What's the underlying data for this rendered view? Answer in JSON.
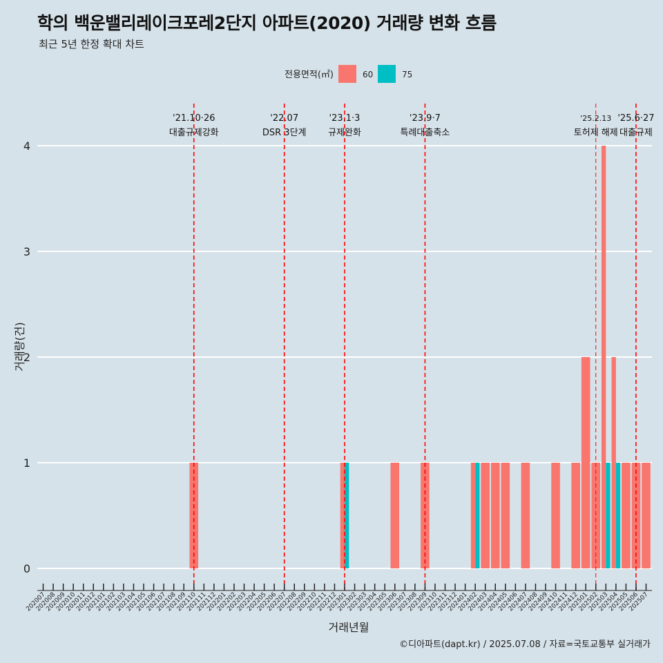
{
  "title": "학의 백운밸리레이크포레2단지 아파트(2020) 거래량 변화 흐름",
  "subtitle": "최근 5년 한정 확대 차트",
  "caption": "©디아파트(dapt.kr) / 2025.07.08 / 자료=국토교통부 실거래가",
  "chart_data": {
    "type": "bar",
    "xlabel": "거래년월",
    "ylabel": "거래량(건)",
    "ylim": [
      0,
      4
    ],
    "yticks": [
      0,
      1,
      2,
      3,
      4
    ],
    "legend": {
      "title": "전용면적(㎡)",
      "position": "top",
      "entries": [
        {
          "name": "60",
          "color": "#f8766d"
        },
        {
          "name": "75",
          "color": "#00bfc4"
        }
      ]
    },
    "categories": [
      "202007",
      "202008",
      "202009",
      "202010",
      "202011",
      "202012",
      "202101",
      "202102",
      "202103",
      "202104",
      "202105",
      "202106",
      "202107",
      "202108",
      "202109",
      "202110",
      "202111",
      "202112",
      "202201",
      "202202",
      "202203",
      "202204",
      "202205",
      "202206",
      "202207",
      "202208",
      "202209",
      "202210",
      "202211",
      "202212",
      "202301",
      "202302",
      "202303",
      "202304",
      "202305",
      "202306",
      "202307",
      "202308",
      "202309",
      "202310",
      "202311",
      "202312",
      "202401",
      "202402",
      "202403",
      "202404",
      "202405",
      "202406",
      "202407",
      "202408",
      "202409",
      "202410",
      "202411",
      "202412",
      "202501",
      "202502",
      "202503",
      "202504",
      "202505",
      "202506",
      "202507"
    ],
    "series": [
      {
        "name": "60",
        "color": "#f8766d",
        "values": [
          0,
          0,
          0,
          0,
          0,
          0,
          0,
          0,
          0,
          0,
          0,
          0,
          0,
          0,
          0,
          1,
          0,
          0,
          0,
          0,
          0,
          0,
          0,
          0,
          0,
          0,
          0,
          0,
          0,
          0,
          1,
          0,
          0,
          0,
          0,
          1,
          0,
          0,
          1,
          0,
          0,
          0,
          0,
          1,
          1,
          1,
          1,
          0,
          1,
          0,
          0,
          1,
          0,
          1,
          2,
          1,
          4,
          2,
          1,
          1,
          1
        ]
      },
      {
        "name": "75",
        "color": "#00bfc4",
        "values": [
          0,
          0,
          0,
          0,
          0,
          0,
          0,
          0,
          0,
          0,
          0,
          0,
          0,
          0,
          0,
          0,
          0,
          0,
          0,
          0,
          0,
          0,
          0,
          0,
          0,
          0,
          0,
          0,
          0,
          0,
          1,
          0,
          0,
          0,
          0,
          0,
          0,
          0,
          0,
          0,
          0,
          0,
          0,
          1,
          0,
          0,
          0,
          0,
          0,
          0,
          0,
          0,
          0,
          0,
          0,
          0,
          1,
          1,
          0,
          0,
          0
        ]
      }
    ],
    "annotations": [
      {
        "month": "202110",
        "date": "'21.10·26",
        "label": "대출규제강화"
      },
      {
        "month": "202207",
        "date": "'22.07",
        "label": "DSR 3단계"
      },
      {
        "month": "202301",
        "date": "'23.1·3",
        "label": "규제완화"
      },
      {
        "month": "202309",
        "date": "'23.9·7",
        "label": "특례대출축소"
      },
      {
        "month": "202502",
        "date": "'25.2.13",
        "label": "토허제 해제"
      },
      {
        "month": "202506",
        "date": "'25.6·27",
        "label": "대출규제"
      }
    ]
  }
}
